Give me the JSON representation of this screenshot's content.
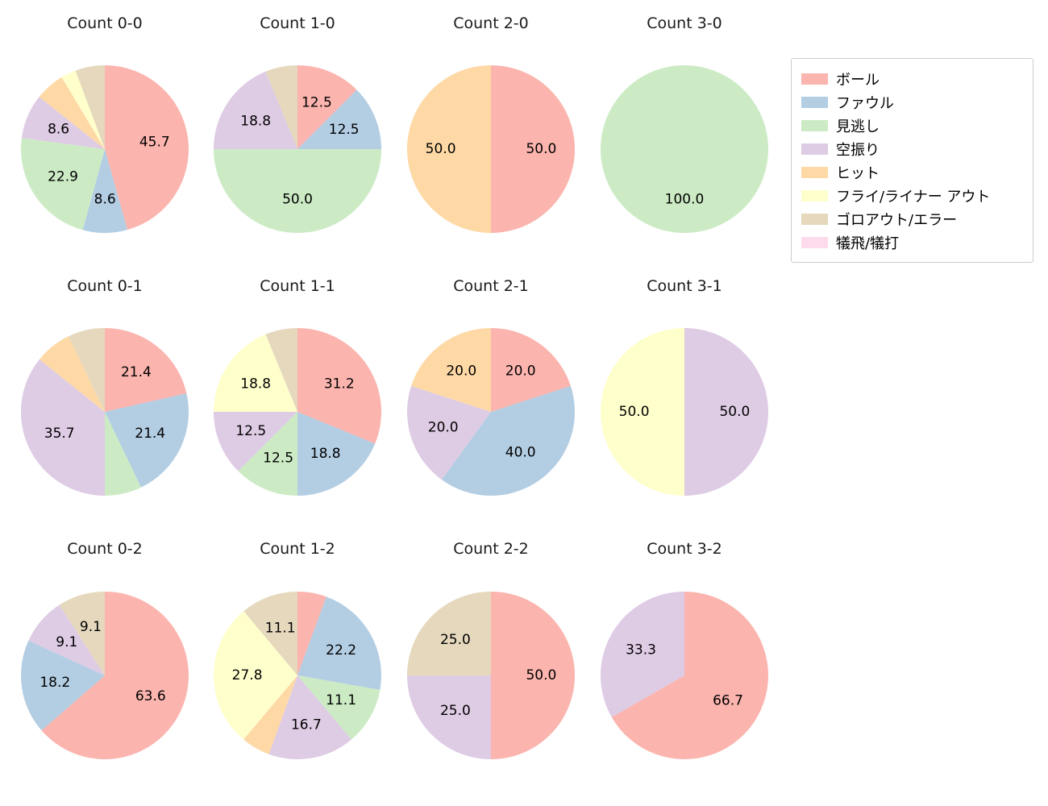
{
  "figure": {
    "background": "#ffffff",
    "text_color": "#1a1a1a"
  },
  "legend": {
    "position": "top-right",
    "entries": [
      {
        "key": "ball",
        "label": "ボール",
        "color": "#fbb4ae"
      },
      {
        "key": "foul",
        "label": "ファウル",
        "color": "#b3cde3"
      },
      {
        "key": "looking",
        "label": "見逃し",
        "color": "#ccebc5"
      },
      {
        "key": "swinging",
        "label": "空振り",
        "color": "#decbe4"
      },
      {
        "key": "hit",
        "label": "ヒット",
        "color": "#fed9a6"
      },
      {
        "key": "fly_liner_out",
        "label": "フライ/ライナー アウト",
        "color": "#ffffcc"
      },
      {
        "key": "ground_out_error",
        "label": "ゴロアウト/エラー",
        "color": "#e5d8bd"
      },
      {
        "key": "sac",
        "label": "犠飛/犠打",
        "color": "#fddaec"
      }
    ]
  },
  "chart_style": {
    "start_angle": 90,
    "direction": "clockwise",
    "label_radius": 0.6,
    "grid": "3 rows x 4 cols"
  },
  "chart_data": [
    {
      "type": "pie",
      "title": "Count 0-0",
      "slices": [
        {
          "category": "ball",
          "value": 45.7,
          "label": "45.7"
        },
        {
          "category": "foul",
          "value": 8.6,
          "label": "8.6"
        },
        {
          "category": "looking",
          "value": 22.9,
          "label": "22.9"
        },
        {
          "category": "swinging",
          "value": 8.6,
          "label": "8.6"
        },
        {
          "category": "hit",
          "value": 5.7,
          "label": ""
        },
        {
          "category": "fly_liner_out",
          "value": 2.9,
          "label": ""
        },
        {
          "category": "ground_out_error",
          "value": 5.7,
          "label": ""
        }
      ]
    },
    {
      "type": "pie",
      "title": "Count 1-0",
      "slices": [
        {
          "category": "ball",
          "value": 12.5,
          "label": "12.5"
        },
        {
          "category": "foul",
          "value": 12.5,
          "label": "12.5"
        },
        {
          "category": "looking",
          "value": 50.0,
          "label": "50.0"
        },
        {
          "category": "swinging",
          "value": 18.8,
          "label": "18.8"
        },
        {
          "category": "ground_out_error",
          "value": 6.2,
          "label": ""
        }
      ]
    },
    {
      "type": "pie",
      "title": "Count 2-0",
      "slices": [
        {
          "category": "ball",
          "value": 50.0,
          "label": "50.0"
        },
        {
          "category": "hit",
          "value": 50.0,
          "label": "50.0"
        }
      ]
    },
    {
      "type": "pie",
      "title": "Count 3-0",
      "slices": [
        {
          "category": "looking",
          "value": 100.0,
          "label": "100.0"
        }
      ]
    },
    {
      "type": "pie",
      "title": "Count 0-1",
      "slices": [
        {
          "category": "ball",
          "value": 21.4,
          "label": "21.4"
        },
        {
          "category": "foul",
          "value": 21.4,
          "label": "21.4"
        },
        {
          "category": "looking",
          "value": 7.1,
          "label": ""
        },
        {
          "category": "swinging",
          "value": 35.7,
          "label": "35.7"
        },
        {
          "category": "hit",
          "value": 7.1,
          "label": ""
        },
        {
          "category": "ground_out_error",
          "value": 7.1,
          "label": ""
        }
      ]
    },
    {
      "type": "pie",
      "title": "Count 1-1",
      "slices": [
        {
          "category": "ball",
          "value": 31.2,
          "label": "31.2"
        },
        {
          "category": "foul",
          "value": 18.8,
          "label": "18.8"
        },
        {
          "category": "looking",
          "value": 12.5,
          "label": "12.5"
        },
        {
          "category": "swinging",
          "value": 12.5,
          "label": "12.5"
        },
        {
          "category": "fly_liner_out",
          "value": 18.8,
          "label": "18.8"
        },
        {
          "category": "ground_out_error",
          "value": 6.2,
          "label": ""
        }
      ]
    },
    {
      "type": "pie",
      "title": "Count 2-1",
      "slices": [
        {
          "category": "ball",
          "value": 20.0,
          "label": "20.0"
        },
        {
          "category": "foul",
          "value": 40.0,
          "label": "40.0"
        },
        {
          "category": "swinging",
          "value": 20.0,
          "label": "20.0"
        },
        {
          "category": "hit",
          "value": 20.0,
          "label": "20.0"
        }
      ]
    },
    {
      "type": "pie",
      "title": "Count 3-1",
      "slices": [
        {
          "category": "swinging",
          "value": 50.0,
          "label": "50.0"
        },
        {
          "category": "fly_liner_out",
          "value": 50.0,
          "label": "50.0"
        }
      ]
    },
    {
      "type": "pie",
      "title": "Count 0-2",
      "slices": [
        {
          "category": "ball",
          "value": 63.6,
          "label": "63.6"
        },
        {
          "category": "foul",
          "value": 18.2,
          "label": "18.2"
        },
        {
          "category": "swinging",
          "value": 9.1,
          "label": "9.1"
        },
        {
          "category": "ground_out_error",
          "value": 9.1,
          "label": "9.1"
        }
      ]
    },
    {
      "type": "pie",
      "title": "Count 1-2",
      "slices": [
        {
          "category": "ball",
          "value": 5.6,
          "label": ""
        },
        {
          "category": "foul",
          "value": 22.2,
          "label": "22.2"
        },
        {
          "category": "looking",
          "value": 11.1,
          "label": "11.1"
        },
        {
          "category": "swinging",
          "value": 16.7,
          "label": "16.7"
        },
        {
          "category": "hit",
          "value": 5.6,
          "label": ""
        },
        {
          "category": "fly_liner_out",
          "value": 27.8,
          "label": "27.8"
        },
        {
          "category": "ground_out_error",
          "value": 11.1,
          "label": "11.1"
        }
      ]
    },
    {
      "type": "pie",
      "title": "Count 2-2",
      "slices": [
        {
          "category": "ball",
          "value": 50.0,
          "label": "50.0"
        },
        {
          "category": "swinging",
          "value": 25.0,
          "label": "25.0"
        },
        {
          "category": "ground_out_error",
          "value": 25.0,
          "label": "25.0"
        }
      ]
    },
    {
      "type": "pie",
      "title": "Count 3-2",
      "slices": [
        {
          "category": "ball",
          "value": 66.7,
          "label": "66.7"
        },
        {
          "category": "swinging",
          "value": 33.3,
          "label": "33.3"
        }
      ]
    }
  ]
}
